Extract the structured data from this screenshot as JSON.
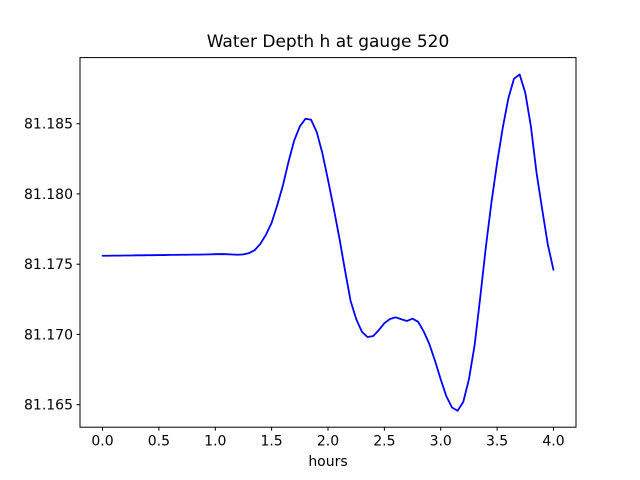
{
  "figure": {
    "background": "#ffffff",
    "spine_color": "#000000",
    "text_color": "#000000"
  },
  "chart_data": {
    "type": "line",
    "title": "Water Depth h at gauge 520",
    "xlabel": "hours",
    "ylabel": "",
    "line_color": "#0000ff",
    "grid": false,
    "legend": null,
    "xlim": [
      -0.2,
      4.2
    ],
    "ylim": [
      81.1634,
      81.1897
    ],
    "xticks": [
      0.0,
      0.5,
      1.0,
      1.5,
      2.0,
      2.5,
      3.0,
      3.5,
      4.0
    ],
    "xtick_labels": [
      "0.0",
      "0.5",
      "1.0",
      "1.5",
      "2.0",
      "2.5",
      "3.0",
      "3.5",
      "4.0"
    ],
    "yticks": [
      81.165,
      81.17,
      81.175,
      81.18,
      81.185
    ],
    "ytick_labels": [
      "81.165",
      "81.170",
      "81.175",
      "81.180",
      "81.185"
    ],
    "x": [
      0.0,
      0.05,
      0.1,
      0.15,
      0.2,
      0.25,
      0.3,
      0.35,
      0.4,
      0.45,
      0.5,
      0.55,
      0.6,
      0.65,
      0.7,
      0.75,
      0.8,
      0.85,
      0.9,
      0.95,
      1.0,
      1.05,
      1.1,
      1.15,
      1.2,
      1.25,
      1.3,
      1.35,
      1.4,
      1.45,
      1.5,
      1.55,
      1.6,
      1.65,
      1.7,
      1.75,
      1.8,
      1.85,
      1.9,
      1.95,
      2.0,
      2.05,
      2.1,
      2.15,
      2.2,
      2.25,
      2.3,
      2.35,
      2.4,
      2.45,
      2.5,
      2.55,
      2.6,
      2.65,
      2.7,
      2.75,
      2.8,
      2.85,
      2.9,
      2.95,
      3.0,
      3.05,
      3.1,
      3.15,
      3.2,
      3.25,
      3.3,
      3.35,
      3.4,
      3.45,
      3.5,
      3.55,
      3.6,
      3.65,
      3.7,
      3.75,
      3.8,
      3.85,
      3.9,
      3.95,
      4.0
    ],
    "y": [
      81.1756,
      81.1756,
      81.17561,
      81.17561,
      81.17562,
      81.17562,
      81.17563,
      81.17563,
      81.17564,
      81.17564,
      81.17565,
      81.17565,
      81.17566,
      81.17566,
      81.17567,
      81.17567,
      81.17568,
      81.17568,
      81.17569,
      81.1757,
      81.17571,
      81.17572,
      81.17571,
      81.17569,
      81.17567,
      81.1757,
      81.17579,
      81.176,
      81.17645,
      81.1771,
      81.17795,
      81.1792,
      81.1806,
      81.1823,
      81.1838,
      81.1848,
      81.18535,
      81.18528,
      81.1844,
      81.1829,
      81.181,
      81.179,
      81.1769,
      81.1746,
      81.1724,
      81.1711,
      81.1702,
      81.16982,
      81.16988,
      81.1703,
      81.1708,
      81.1711,
      81.17122,
      81.17108,
      81.17096,
      81.17112,
      81.1709,
      81.1702,
      81.1693,
      81.1681,
      81.1668,
      81.1656,
      81.1648,
      81.16457,
      81.1652,
      81.1668,
      81.1692,
      81.1726,
      81.1762,
      81.1794,
      81.1822,
      81.1847,
      81.1868,
      81.1882,
      81.1885,
      81.1872,
      81.1848,
      81.1815,
      81.1789,
      81.1764,
      81.1746
    ]
  }
}
